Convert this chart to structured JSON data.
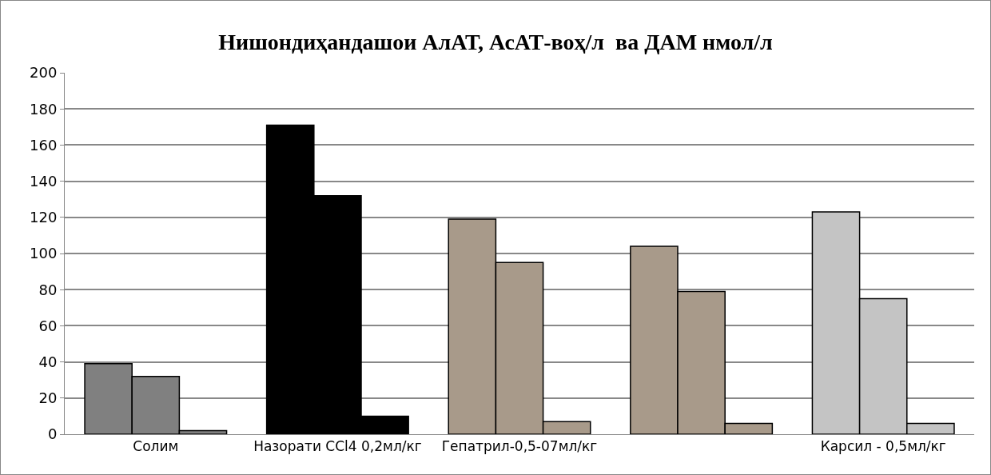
{
  "chart_data": {
    "type": "bar",
    "title": "Нишондиҳандашои АлАТ, АсАТ-воҳ/л  ва ДАМ нмол/л",
    "categories": [
      "Солим",
      "Назорати CCl4 0,2мл/кг",
      "Гепатрил-0,5-07мл/кг",
      null,
      "Карсил - 0,5мл/кг"
    ],
    "series": [
      {
        "colors": [
          "#808080",
          "#000000",
          "#a89a8a",
          "#a89a8a",
          "#c4c4c4"
        ],
        "values": [
          39,
          171,
          119,
          104,
          123
        ]
      },
      {
        "colors": [
          "#808080",
          "#000000",
          "#a89a8a",
          "#a89a8a",
          "#c4c4c4"
        ],
        "values": [
          32,
          132,
          95,
          79,
          75
        ]
      },
      {
        "colors": [
          "#808080",
          "#000000",
          "#a89a8a",
          "#a89a8a",
          "#c4c4c4"
        ],
        "values": [
          2,
          10,
          7,
          6,
          6
        ]
      }
    ],
    "ylim": [
      0,
      200
    ],
    "yticks": [
      0,
      20,
      40,
      60,
      80,
      100,
      120,
      140,
      160,
      180,
      200
    ],
    "grid": "y"
  }
}
